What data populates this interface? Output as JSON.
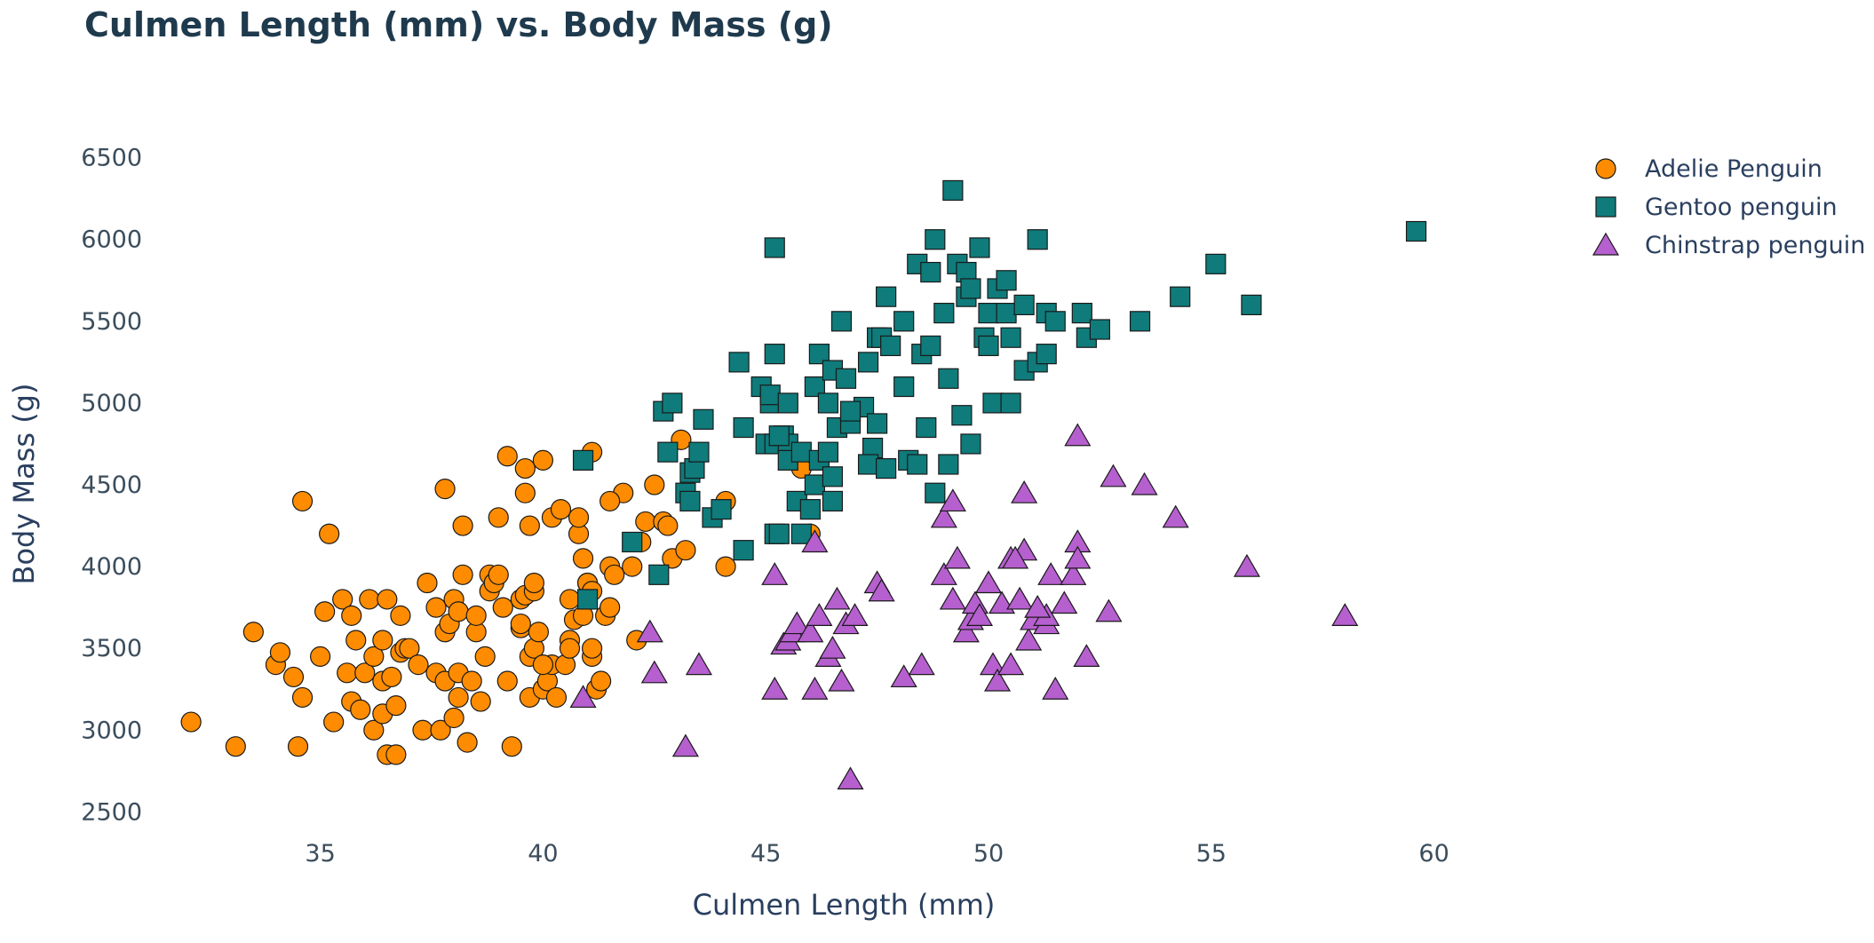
{
  "chart_data": {
    "type": "scatter",
    "title": "Culmen Length (mm) vs. Body Mass (g)",
    "xlabel": "Culmen Length (mm)",
    "ylabel": "Body Mass (g)",
    "xlim": [
      31.2,
      62.5
    ],
    "ylim": [
      2350,
      6650
    ],
    "xticks": [
      35,
      40,
      45,
      50,
      55,
      60
    ],
    "yticks": [
      2500,
      3000,
      3500,
      4000,
      4500,
      5000,
      5500,
      6000,
      6500
    ],
    "grid": false,
    "legend_position": "top-right",
    "series": [
      {
        "name": "Adelie Penguin",
        "marker": "circle",
        "color": "#ff8c00",
        "points": [
          [
            32.1,
            3050
          ],
          [
            33.1,
            2900
          ],
          [
            33.5,
            3600
          ],
          [
            34.0,
            3400
          ],
          [
            34.1,
            3475
          ],
          [
            34.4,
            3325
          ],
          [
            34.5,
            2900
          ],
          [
            34.6,
            3200
          ],
          [
            34.6,
            4400
          ],
          [
            35.0,
            3450
          ],
          [
            35.1,
            3725
          ],
          [
            35.2,
            4200
          ],
          [
            35.3,
            3050
          ],
          [
            35.5,
            3800
          ],
          [
            35.6,
            3350
          ],
          [
            35.7,
            3700
          ],
          [
            35.7,
            3175
          ],
          [
            35.8,
            3550
          ],
          [
            35.9,
            3125
          ],
          [
            36.0,
            3350
          ],
          [
            36.1,
            3800
          ],
          [
            36.2,
            3450
          ],
          [
            36.2,
            3000
          ],
          [
            36.4,
            3300
          ],
          [
            36.4,
            3100
          ],
          [
            36.4,
            3550
          ],
          [
            36.5,
            3800
          ],
          [
            36.5,
            2850
          ],
          [
            36.6,
            3325
          ],
          [
            36.7,
            3150
          ],
          [
            36.7,
            2850
          ],
          [
            36.8,
            3475
          ],
          [
            36.8,
            3700
          ],
          [
            36.9,
            3500
          ],
          [
            37.0,
            3500
          ],
          [
            37.2,
            3400
          ],
          [
            37.3,
            3000
          ],
          [
            37.4,
            3900
          ],
          [
            37.6,
            3750
          ],
          [
            37.6,
            3350
          ],
          [
            37.7,
            3000
          ],
          [
            37.8,
            4475
          ],
          [
            37.8,
            3300
          ],
          [
            37.8,
            3600
          ],
          [
            37.9,
            3650
          ],
          [
            38.0,
            3800
          ],
          [
            38.0,
            3075
          ],
          [
            38.1,
            3725
          ],
          [
            38.1,
            3200
          ],
          [
            38.1,
            3350
          ],
          [
            38.2,
            4250
          ],
          [
            38.2,
            3950
          ],
          [
            38.3,
            2925
          ],
          [
            38.4,
            3300
          ],
          [
            38.5,
            3600
          ],
          [
            38.5,
            3700
          ],
          [
            38.6,
            3175
          ],
          [
            38.7,
            3450
          ],
          [
            38.8,
            3850
          ],
          [
            38.8,
            3950
          ],
          [
            38.9,
            3900
          ],
          [
            39.0,
            3950
          ],
          [
            39.1,
            3750
          ],
          [
            39.2,
            3300
          ],
          [
            39.3,
            2900
          ],
          [
            39.5,
            3625
          ],
          [
            39.5,
            3800
          ],
          [
            39.6,
            3825
          ],
          [
            39.7,
            3450
          ],
          [
            39.7,
            3200
          ],
          [
            39.8,
            3850
          ],
          [
            39.8,
            3500
          ],
          [
            39.9,
            3600
          ],
          [
            40.0,
            3250
          ],
          [
            40.1,
            3300
          ],
          [
            40.2,
            3400
          ],
          [
            40.3,
            3200
          ],
          [
            40.5,
            3400
          ],
          [
            40.6,
            3800
          ],
          [
            40.7,
            3675
          ],
          [
            40.8,
            4200
          ],
          [
            40.9,
            4050
          ],
          [
            41.0,
            3900
          ],
          [
            41.1,
            3450
          ],
          [
            41.1,
            4700
          ],
          [
            41.2,
            3250
          ],
          [
            41.3,
            3300
          ],
          [
            41.4,
            3700
          ],
          [
            41.5,
            4000
          ],
          [
            41.6,
            3950
          ],
          [
            41.8,
            4450
          ],
          [
            42.0,
            4000
          ],
          [
            42.1,
            3550
          ],
          [
            42.2,
            4150
          ],
          [
            42.3,
            4275
          ],
          [
            42.5,
            4500
          ],
          [
            42.7,
            4275
          ],
          [
            42.8,
            4250
          ],
          [
            42.9,
            4050
          ],
          [
            43.1,
            4775
          ],
          [
            43.2,
            4100
          ],
          [
            44.1,
            4000
          ],
          [
            44.1,
            4400
          ],
          [
            45.8,
            4600
          ],
          [
            46.0,
            4200
          ],
          [
            39.2,
            4675
          ],
          [
            39.6,
            4600
          ],
          [
            40.0,
            4650
          ],
          [
            39.0,
            4300
          ],
          [
            39.6,
            4450
          ],
          [
            39.7,
            4250
          ],
          [
            40.2,
            4300
          ],
          [
            40.4,
            4350
          ],
          [
            40.8,
            4300
          ],
          [
            41.1,
            3500
          ],
          [
            41.5,
            4400
          ],
          [
            40.6,
            3550
          ],
          [
            40.9,
            3700
          ],
          [
            41.0,
            3900
          ],
          [
            40.6,
            3500
          ],
          [
            41.1,
            3850
          ],
          [
            39.5,
            3650
          ],
          [
            39.8,
            3900
          ],
          [
            40.0,
            3400
          ],
          [
            41.5,
            3750
          ]
        ]
      },
      {
        "name": "Gentoo penguin",
        "marker": "square",
        "color": "#0f7b7b",
        "points": [
          [
            40.9,
            4650
          ],
          [
            41.0,
            3800
          ],
          [
            42.0,
            4150
          ],
          [
            42.6,
            3950
          ],
          [
            42.7,
            4950
          ],
          [
            42.8,
            4700
          ],
          [
            42.9,
            5000
          ],
          [
            43.2,
            4450
          ],
          [
            43.3,
            4400
          ],
          [
            43.3,
            4575
          ],
          [
            43.4,
            4600
          ],
          [
            43.5,
            4700
          ],
          [
            43.6,
            4900
          ],
          [
            43.8,
            4300
          ],
          [
            44.0,
            4350
          ],
          [
            44.4,
            5250
          ],
          [
            44.5,
            4850
          ],
          [
            44.5,
            4100
          ],
          [
            44.9,
            5100
          ],
          [
            45.0,
            4750
          ],
          [
            45.1,
            5000
          ],
          [
            45.1,
            5050
          ],
          [
            45.2,
            4750
          ],
          [
            45.2,
            4200
          ],
          [
            45.2,
            5950
          ],
          [
            45.2,
            5300
          ],
          [
            45.3,
            4200
          ],
          [
            45.4,
            4800
          ],
          [
            45.5,
            4750
          ],
          [
            45.5,
            5000
          ],
          [
            45.5,
            4650
          ],
          [
            45.7,
            4400
          ],
          [
            45.8,
            4700
          ],
          [
            46.1,
            5100
          ],
          [
            46.1,
            4500
          ],
          [
            46.2,
            5300
          ],
          [
            46.2,
            4650
          ],
          [
            46.4,
            4700
          ],
          [
            46.4,
            5000
          ],
          [
            46.5,
            4550
          ],
          [
            46.5,
            5200
          ],
          [
            46.6,
            4850
          ],
          [
            46.7,
            5500
          ],
          [
            46.8,
            5150
          ],
          [
            46.9,
            4875
          ],
          [
            47.2,
            4975
          ],
          [
            47.3,
            5250
          ],
          [
            47.4,
            4725
          ],
          [
            47.5,
            4875
          ],
          [
            47.5,
            5400
          ],
          [
            47.6,
            5400
          ],
          [
            47.7,
            5650
          ],
          [
            47.8,
            5350
          ],
          [
            48.1,
            5100
          ],
          [
            48.1,
            5500
          ],
          [
            48.2,
            4650
          ],
          [
            48.4,
            4625
          ],
          [
            48.4,
            5850
          ],
          [
            48.5,
            5300
          ],
          [
            48.6,
            4850
          ],
          [
            48.7,
            5350
          ],
          [
            48.7,
            5800
          ],
          [
            48.8,
            4450
          ],
          [
            48.8,
            6000
          ],
          [
            49.0,
            5550
          ],
          [
            49.1,
            4625
          ],
          [
            49.1,
            5150
          ],
          [
            49.2,
            6300
          ],
          [
            49.3,
            5850
          ],
          [
            49.4,
            4925
          ],
          [
            49.5,
            5650
          ],
          [
            49.5,
            5800
          ],
          [
            49.6,
            4750
          ],
          [
            49.6,
            5700
          ],
          [
            49.8,
            5950
          ],
          [
            49.9,
            5400
          ],
          [
            50.0,
            5550
          ],
          [
            50.0,
            5350
          ],
          [
            50.1,
            5000
          ],
          [
            50.2,
            5700
          ],
          [
            50.4,
            5550
          ],
          [
            50.4,
            5750
          ],
          [
            50.5,
            5000
          ],
          [
            50.5,
            5400
          ],
          [
            50.8,
            5600
          ],
          [
            50.8,
            5200
          ],
          [
            51.1,
            6000
          ],
          [
            51.1,
            5250
          ],
          [
            51.3,
            5550
          ],
          [
            51.3,
            5300
          ],
          [
            51.5,
            5500
          ],
          [
            52.1,
            5550
          ],
          [
            52.2,
            5400
          ],
          [
            52.5,
            5450
          ],
          [
            53.4,
            5500
          ],
          [
            54.3,
            5650
          ],
          [
            55.1,
            5850
          ],
          [
            55.9,
            5600
          ],
          [
            59.6,
            6050
          ],
          [
            46.0,
            4350
          ],
          [
            45.3,
            4800
          ],
          [
            46.5,
            4400
          ],
          [
            47.3,
            4625
          ],
          [
            45.8,
            4200
          ],
          [
            46.9,
            4950
          ],
          [
            47.7,
            4600
          ]
        ]
      },
      {
        "name": "Chinstrap penguin",
        "marker": "triangle",
        "color": "#b65fcf",
        "points": [
          [
            40.9,
            3200
          ],
          [
            42.4,
            3600
          ],
          [
            42.5,
            3350
          ],
          [
            43.2,
            2900
          ],
          [
            43.5,
            3400
          ],
          [
            45.2,
            3250
          ],
          [
            45.2,
            3950
          ],
          [
            45.4,
            3525
          ],
          [
            45.5,
            3550
          ],
          [
            45.6,
            3600
          ],
          [
            45.7,
            3650
          ],
          [
            46.0,
            3600
          ],
          [
            46.1,
            3250
          ],
          [
            46.1,
            4150
          ],
          [
            46.2,
            3700
          ],
          [
            46.4,
            3450
          ],
          [
            46.5,
            3500
          ],
          [
            46.6,
            3800
          ],
          [
            46.7,
            3300
          ],
          [
            46.8,
            3650
          ],
          [
            46.9,
            2700
          ],
          [
            47.0,
            3700
          ],
          [
            47.5,
            3900
          ],
          [
            47.6,
            3850
          ],
          [
            48.1,
            3325
          ],
          [
            48.5,
            3400
          ],
          [
            49.0,
            3950
          ],
          [
            49.2,
            3800
          ],
          [
            49.3,
            4050
          ],
          [
            49.5,
            3600
          ],
          [
            49.6,
            3675
          ],
          [
            49.7,
            3775
          ],
          [
            50.0,
            3900
          ],
          [
            50.1,
            3400
          ],
          [
            50.2,
            3300
          ],
          [
            50.3,
            3775
          ],
          [
            50.5,
            4050
          ],
          [
            50.5,
            3400
          ],
          [
            50.7,
            3800
          ],
          [
            50.8,
            4100
          ],
          [
            50.9,
            3550
          ],
          [
            51.0,
            3675
          ],
          [
            51.3,
            3650
          ],
          [
            51.3,
            3700
          ],
          [
            51.4,
            3950
          ],
          [
            51.5,
            3250
          ],
          [
            51.7,
            3775
          ],
          [
            51.9,
            3950
          ],
          [
            52.0,
            4150
          ],
          [
            52.0,
            4050
          ],
          [
            52.0,
            4800
          ],
          [
            52.2,
            3450
          ],
          [
            52.7,
            3725
          ],
          [
            52.8,
            4550
          ],
          [
            53.5,
            4500
          ],
          [
            54.2,
            4300
          ],
          [
            55.8,
            4000
          ],
          [
            58.0,
            3700
          ],
          [
            49.0,
            4300
          ],
          [
            49.2,
            4400
          ],
          [
            50.8,
            4450
          ],
          [
            50.6,
            4050
          ],
          [
            51.1,
            3750
          ],
          [
            49.8,
            3700
          ]
        ]
      }
    ]
  }
}
